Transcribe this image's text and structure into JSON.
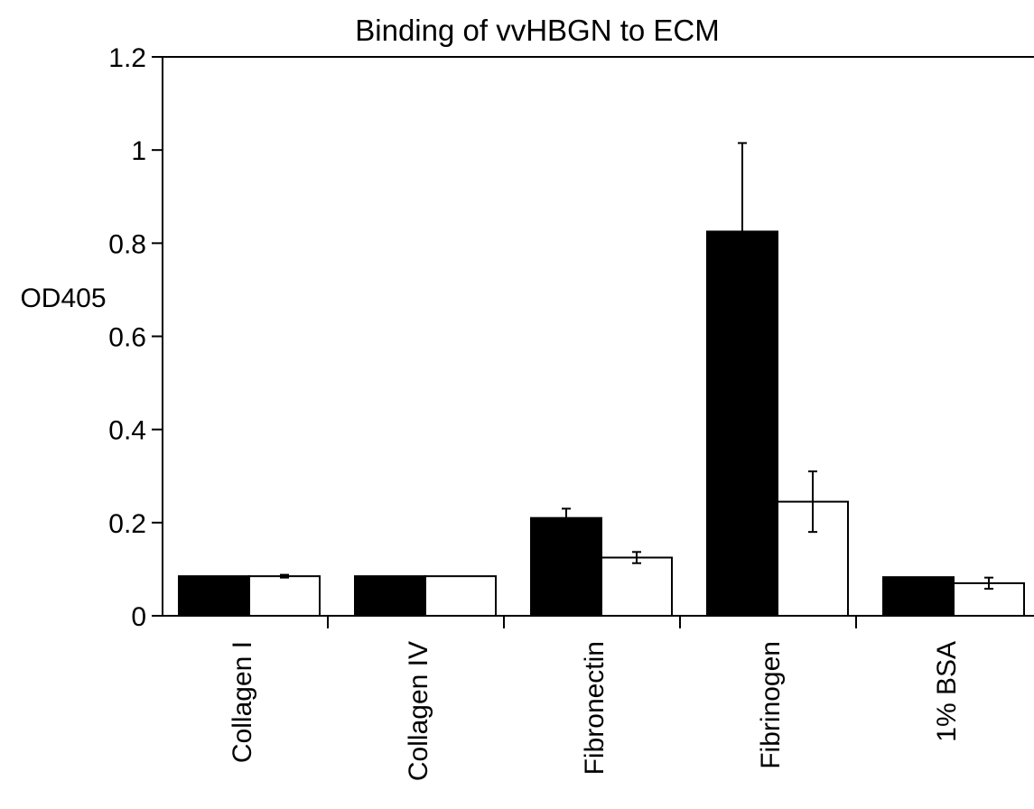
{
  "chart_data": {
    "type": "bar",
    "title": "Binding of vvHBGN to ECM",
    "xlabel": "",
    "ylabel": "OD405",
    "ylim": [
      0,
      1.2
    ],
    "yticks": [
      "0",
      "0.2",
      "0.4",
      "0.6",
      "0.8",
      "1",
      "1.2"
    ],
    "categories": [
      "Collagen I",
      "Collagen IV",
      "Fibronectin",
      "Fibrinogen",
      "1% BSA"
    ],
    "series": [
      {
        "color": "#000000",
        "values": [
          0.085,
          0.085,
          0.21,
          0.825,
          0.083
        ],
        "errors": [
          0,
          0,
          0.02,
          0.19,
          0
        ]
      },
      {
        "color": "#ffffff",
        "values": [
          0.085,
          0.085,
          0.125,
          0.245,
          0.07
        ],
        "errors": [
          0.003,
          0,
          0.012,
          0.065,
          0.012
        ]
      }
    ],
    "grid": false,
    "legend": "none"
  }
}
